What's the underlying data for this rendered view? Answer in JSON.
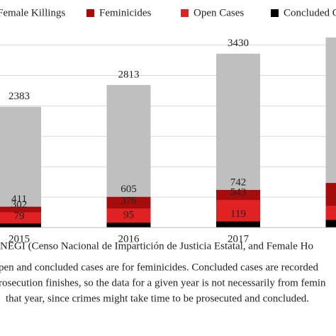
{
  "chart_data": {
    "type": "bar",
    "categories": [
      "2015",
      "2016",
      "2017",
      null
    ],
    "series": [
      {
        "name": "Female Killings",
        "color": "#bfbfbf",
        "values": [
          2383,
          2813,
          3430,
          3750
        ]
      },
      {
        "name": "Feminicides",
        "color": "#a50d0d",
        "values": [
          411,
          605,
          742,
          880
        ]
      },
      {
        "name": "Open Cases",
        "color": "#e02222",
        "values": [
          302,
          376,
          543,
          430
        ]
      },
      {
        "name": "Concluded Cases",
        "color": "#000000",
        "values": [
          79,
          95,
          119,
          150
        ]
      }
    ],
    "ylim": [
      0,
      4000
    ],
    "yticks": [
      0,
      600,
      1200,
      1800,
      2400,
      3000,
      3600
    ],
    "grid": true,
    "source": "NEGI (Censo Nacional de Impartición de Justicia Estatal, and Female Ho",
    "notes": [
      "pen and concluded cases are for feminicides. Concluded cases are recorded",
      "rosecution finishes, so the data for a given year is not necessarily from femin",
      "that year, since crimes might take time to be prosecuted and concluded."
    ]
  }
}
